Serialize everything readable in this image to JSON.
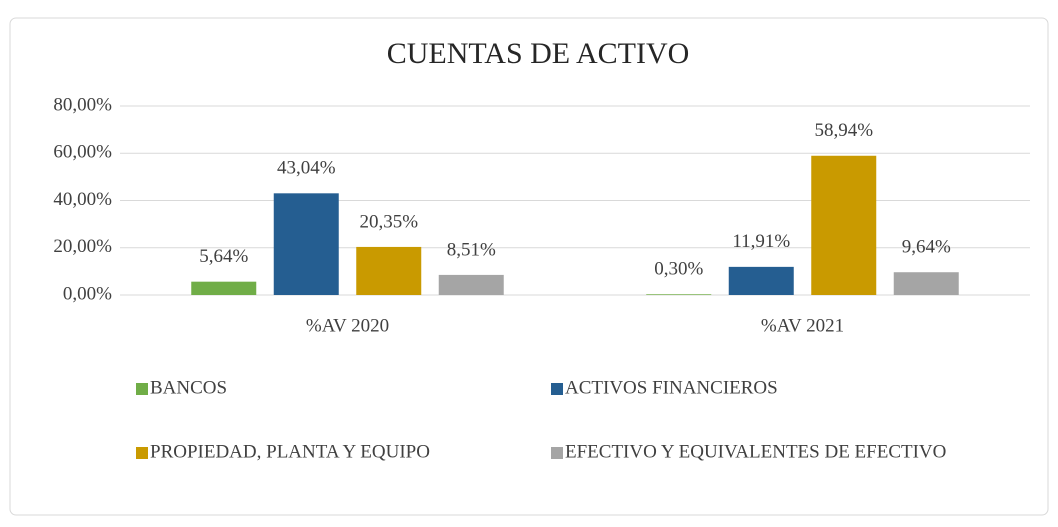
{
  "chart_data": {
    "type": "bar",
    "title": "CUENTAS DE ACTIVO",
    "categories": [
      "%AV 2020",
      "%AV 2021"
    ],
    "series": [
      {
        "name": "BANCOS",
        "color": "#70ad47",
        "values": [
          5.64,
          0.3
        ],
        "value_labels": [
          "5,64%",
          "0,30%"
        ]
      },
      {
        "name": "ACTIVOS FINANCIEROS",
        "color": "#255e91",
        "values": [
          43.04,
          11.91
        ],
        "value_labels": [
          "43,04%",
          "11,91%"
        ]
      },
      {
        "name": "PROPIEDAD, PLANTA Y EQUIPO",
        "color": "#c99a00",
        "values": [
          20.35,
          58.94
        ],
        "value_labels": [
          "20,35%",
          "58,94%"
        ]
      },
      {
        "name": "EFECTIVO Y EQUIVALENTES DE EFECTIVO",
        "color": "#a5a5a5",
        "values": [
          8.51,
          9.64
        ],
        "value_labels": [
          "8,51%",
          "9,64%"
        ]
      }
    ],
    "ylim": [
      0,
      80
    ],
    "yticks": [
      {
        "value": 0,
        "label": "0,00%"
      },
      {
        "value": 20,
        "label": "20,00%"
      },
      {
        "value": 40,
        "label": "40,00%"
      },
      {
        "value": 60,
        "label": "60,00%"
      },
      {
        "value": 80,
        "label": "80,00%"
      }
    ],
    "grid": true,
    "legend": "bottom"
  }
}
